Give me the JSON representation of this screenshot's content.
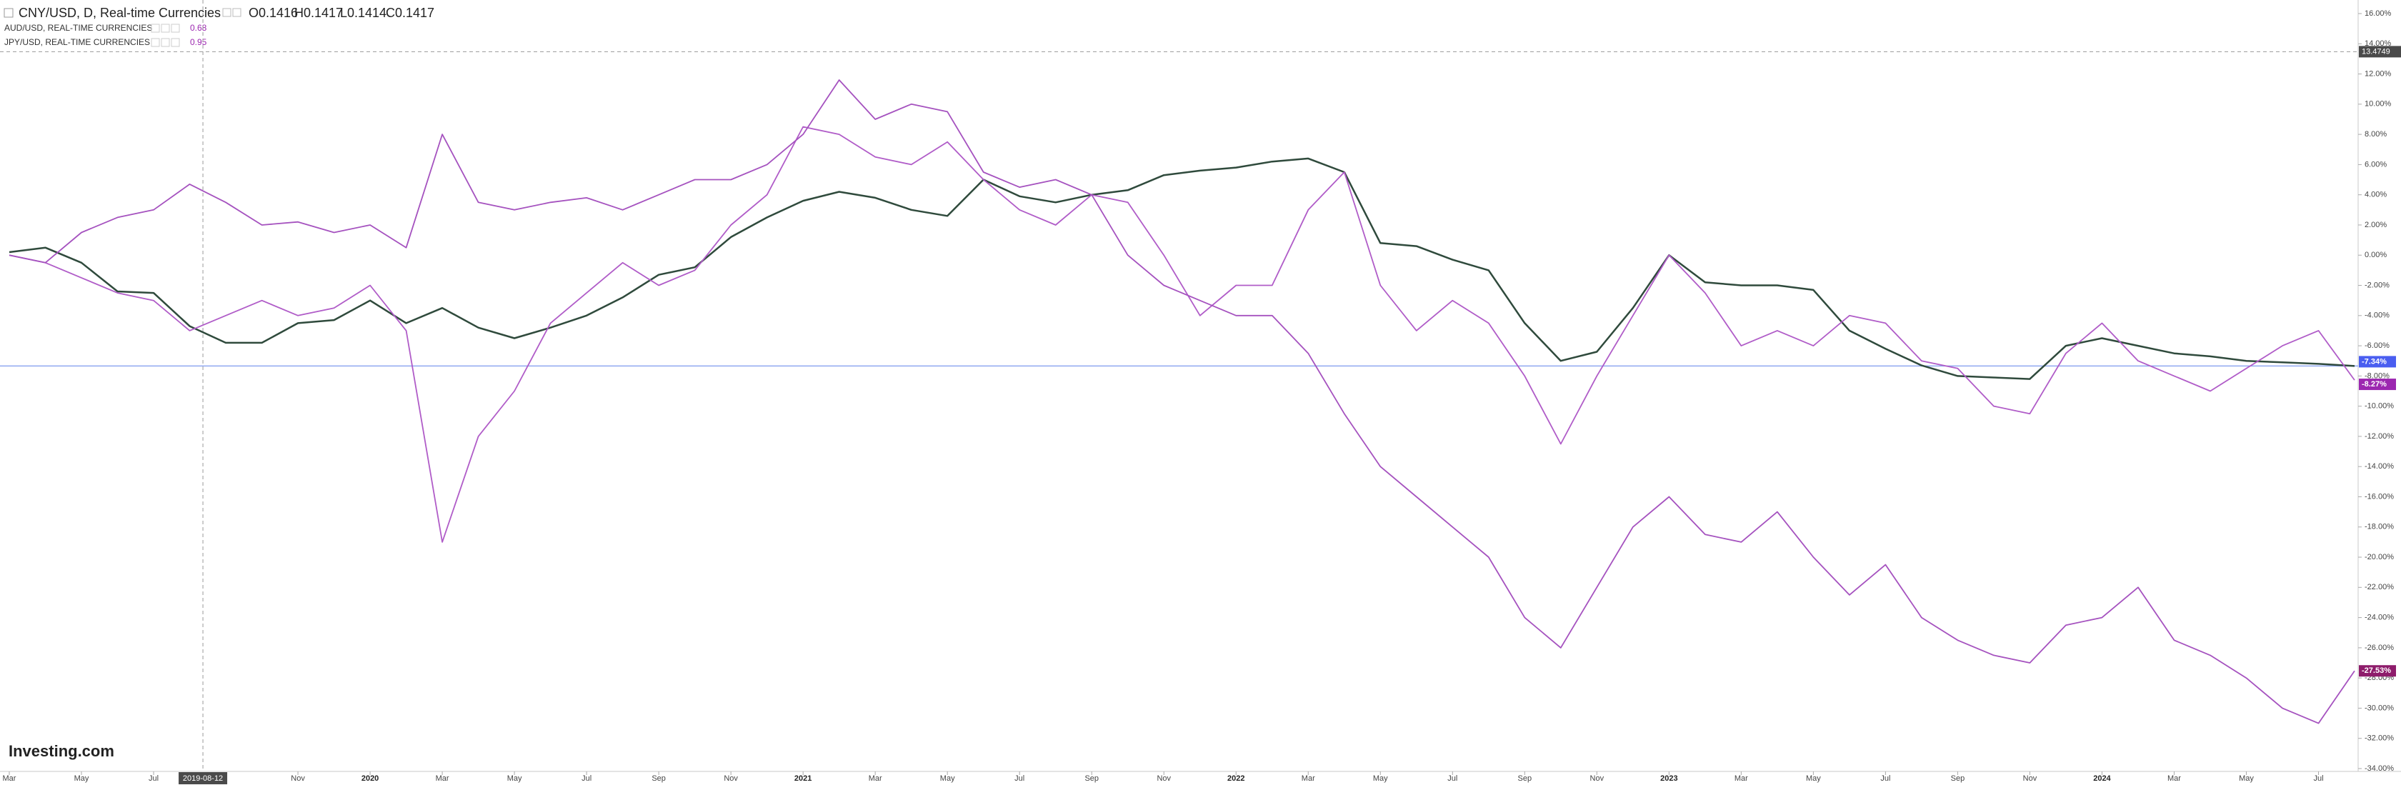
{
  "chart_data": {
    "type": "line",
    "title": "CNY/USD, D, Real-time Currencies",
    "ohlc": [
      "O0.1416",
      "H0.1417",
      "L0.1414",
      "C0.1417"
    ],
    "overlays": [
      {
        "name": "AUD/USD, REAL-TIME CURRENCIES",
        "price": "0.68"
      },
      {
        "name": "JPY/USD, REAL-TIME CURRENCIES",
        "price": "0.95"
      }
    ],
    "logo": "Investing.com",
    "x": [
      "2019-03",
      "2019-04",
      "2019-05",
      "2019-06",
      "2019-07",
      "2019-08",
      "2019-09",
      "2019-10",
      "2019-11",
      "2019-12",
      "2020-01",
      "2020-02",
      "2020-03",
      "2020-04",
      "2020-05",
      "2020-06",
      "2020-07",
      "2020-08",
      "2020-09",
      "2020-10",
      "2020-11",
      "2020-12",
      "2021-01",
      "2021-02",
      "2021-03",
      "2021-04",
      "2021-05",
      "2021-06",
      "2021-07",
      "2021-08",
      "2021-09",
      "2021-10",
      "2021-11",
      "2021-12",
      "2022-01",
      "2022-02",
      "2022-03",
      "2022-04",
      "2022-05",
      "2022-06",
      "2022-07",
      "2022-08",
      "2022-09",
      "2022-10",
      "2022-11",
      "2022-12",
      "2023-01",
      "2023-02",
      "2023-03",
      "2023-04",
      "2023-05",
      "2023-06",
      "2023-07",
      "2023-08",
      "2023-09",
      "2023-10",
      "2023-11",
      "2023-12",
      "2024-01",
      "2024-02",
      "2024-03",
      "2024-04",
      "2024-05",
      "2024-06",
      "2024-07",
      "2024-08"
    ],
    "series": [
      {
        "name": "CNY/USD",
        "color": "#2f4a3c",
        "badge_color": "#4a5ef0",
        "last_label": "-7.34%",
        "values": [
          0.2,
          0.5,
          -0.5,
          -2.4,
          -2.5,
          -4.7,
          -5.8,
          -5.8,
          -4.5,
          -4.3,
          -3.0,
          -4.5,
          -3.5,
          -4.8,
          -5.5,
          -4.8,
          -4.0,
          -2.8,
          -1.3,
          -0.8,
          1.2,
          2.5,
          3.6,
          4.2,
          3.8,
          3.0,
          2.6,
          5.0,
          3.9,
          3.5,
          4.0,
          4.3,
          5.3,
          5.6,
          5.8,
          6.2,
          6.4,
          5.5,
          0.8,
          0.6,
          -0.3,
          -1.0,
          -4.5,
          -7.0,
          -6.4,
          -3.5,
          0.0,
          -1.8,
          -2.0,
          -2.0,
          -2.3,
          -5.0,
          -6.2,
          -7.3,
          -8.0,
          -8.1,
          -8.2,
          -6.0,
          -5.5,
          -6.0,
          -6.5,
          -6.7,
          -7.0,
          -7.1,
          -7.2,
          -7.34
        ]
      },
      {
        "name": "AUD/USD",
        "color": "#b05cc8",
        "badge_color": "#9c27b0",
        "last_label": "-8.27%",
        "values": [
          0.0,
          -0.5,
          -1.5,
          -2.5,
          -3.0,
          -5.0,
          -4.0,
          -3.0,
          -4.0,
          -3.5,
          -2.0,
          -5.0,
          -19.0,
          -12.0,
          -9.0,
          -4.5,
          -2.5,
          -0.5,
          -2.0,
          -1.0,
          2.0,
          4.0,
          8.5,
          8.0,
          6.5,
          6.0,
          7.5,
          5.0,
          3.0,
          2.0,
          4.0,
          3.5,
          0.0,
          -4.0,
          -2.0,
          -2.0,
          3.0,
          5.5,
          -2.0,
          -5.0,
          -3.0,
          -4.5,
          -8.0,
          -12.5,
          -8.0,
          -4.0,
          0.0,
          -2.5,
          -6.0,
          -5.0,
          -6.0,
          -4.0,
          -4.5,
          -7.0,
          -7.5,
          -10.0,
          -10.5,
          -6.5,
          -4.5,
          -7.0,
          -8.0,
          -9.0,
          -7.5,
          -6.0,
          -5.0,
          -8.27
        ]
      },
      {
        "name": "JPY/USD",
        "color": "#a552bf",
        "badge_color": "#8e1c6b",
        "last_label": "-27.53%",
        "values": [
          0.0,
          -0.5,
          1.5,
          2.5,
          3.0,
          4.7,
          3.5,
          2.0,
          2.2,
          1.5,
          2.0,
          0.5,
          8.0,
          3.5,
          3.0,
          3.5,
          3.8,
          3.0,
          4.0,
          5.0,
          5.0,
          6.0,
          8.0,
          11.6,
          9.0,
          10.0,
          9.5,
          5.5,
          4.5,
          5.0,
          4.0,
          0.0,
          -2.0,
          -3.0,
          -4.0,
          -4.0,
          -6.5,
          -10.5,
          -14.0,
          -16.0,
          -18.0,
          -20.0,
          -24.0,
          -26.0,
          -22.0,
          -18.0,
          -16.0,
          -18.5,
          -19.0,
          -17.0,
          -20.0,
          -22.5,
          -20.5,
          -24.0,
          -25.5,
          -26.5,
          -27.0,
          -24.5,
          -24.0,
          -22.0,
          -25.5,
          -26.5,
          -28.0,
          -30.0,
          -31.0,
          -27.53
        ]
      }
    ],
    "xlim": [
      "2019-03",
      "2024-08"
    ],
    "xticks": [
      {
        "value": "2019-03",
        "label": "Mar"
      },
      {
        "value": "2019-05",
        "label": "May"
      },
      {
        "value": "2019-07",
        "label": "Jul"
      },
      {
        "value": "2019-11",
        "label": "Nov"
      },
      {
        "value": "2020-01",
        "label": "2020"
      },
      {
        "value": "2020-03",
        "label": "Mar"
      },
      {
        "value": "2020-05",
        "label": "May"
      },
      {
        "value": "2020-07",
        "label": "Jul"
      },
      {
        "value": "2020-09",
        "label": "Sep"
      },
      {
        "value": "2020-11",
        "label": "Nov"
      },
      {
        "value": "2021-01",
        "label": "2021"
      },
      {
        "value": "2021-03",
        "label": "Mar"
      },
      {
        "value": "2021-05",
        "label": "May"
      },
      {
        "value": "2021-07",
        "label": "Jul"
      },
      {
        "value": "2021-09",
        "label": "Sep"
      },
      {
        "value": "2021-11",
        "label": "Nov"
      },
      {
        "value": "2022-01",
        "label": "2022"
      },
      {
        "value": "2022-03",
        "label": "Mar"
      },
      {
        "value": "2022-05",
        "label": "May"
      },
      {
        "value": "2022-07",
        "label": "Jul"
      },
      {
        "value": "2022-09",
        "label": "Sep"
      },
      {
        "value": "2022-11",
        "label": "Nov"
      },
      {
        "value": "2023-01",
        "label": "2023"
      },
      {
        "value": "2023-03",
        "label": "Mar"
      },
      {
        "value": "2023-05",
        "label": "May"
      },
      {
        "value": "2023-07",
        "label": "Jul"
      },
      {
        "value": "2023-09",
        "label": "Sep"
      },
      {
        "value": "2023-11",
        "label": "Nov"
      },
      {
        "value": "2024-01",
        "label": "2024"
      },
      {
        "value": "2024-03",
        "label": "Mar"
      },
      {
        "value": "2024-05",
        "label": "May"
      },
      {
        "value": "2024-07",
        "label": "Jul"
      }
    ],
    "ylim": [
      -34,
      16
    ],
    "yticks": [
      {
        "value": 16,
        "label": "16.00%"
      },
      {
        "value": 14,
        "label": "14.00%"
      },
      {
        "value": 12,
        "label": "12.00%"
      },
      {
        "value": 10,
        "label": "10.00%"
      },
      {
        "value": 8,
        "label": "8.00%"
      },
      {
        "value": 6,
        "label": "6.00%"
      },
      {
        "value": 4,
        "label": "4.00%"
      },
      {
        "value": 2,
        "label": "2.00%"
      },
      {
        "value": 0,
        "label": "0.00%"
      },
      {
        "value": -2,
        "label": "-2.00%"
      },
      {
        "value": -4,
        "label": "-4.00%"
      },
      {
        "value": -6,
        "label": "-6.00%"
      },
      {
        "value": -8,
        "label": "-8.00%"
      },
      {
        "value": -10,
        "label": "-10.00%"
      },
      {
        "value": -12,
        "label": "-12.00%"
      },
      {
        "value": -14,
        "label": "-14.00%"
      },
      {
        "value": -16,
        "label": "-16.00%"
      },
      {
        "value": -18,
        "label": "-18.00%"
      },
      {
        "value": -20,
        "label": "-20.00%"
      },
      {
        "value": -22,
        "label": "-22.00%"
      },
      {
        "value": -24,
        "label": "-24.00%"
      },
      {
        "value": -26,
        "label": "-26.00%"
      },
      {
        "value": -28,
        "label": "-28.00%"
      },
      {
        "value": -30,
        "label": "-30.00%"
      },
      {
        "value": -32,
        "label": "-32.00%"
      },
      {
        "value": -34,
        "label": "-34.00%"
      }
    ],
    "crosshair": {
      "x": "2019-08-12",
      "y": 13.4749
    }
  }
}
